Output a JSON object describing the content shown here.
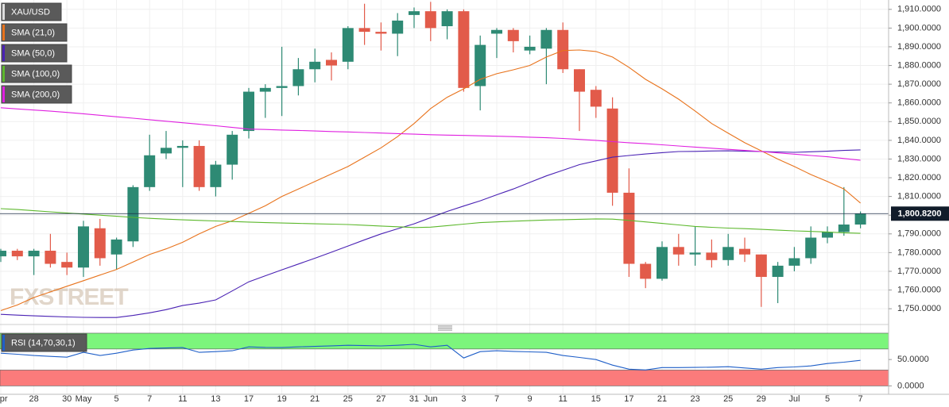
{
  "chart_data": [
    {
      "type": "candlestick",
      "watermark": "FXSTREET",
      "categories": [
        "Apr",
        null,
        "28",
        null,
        "30",
        "May",
        null,
        "5",
        null,
        "7",
        null,
        "11",
        null,
        "13",
        null,
        "17",
        null,
        "19",
        null,
        "21",
        null,
        "25",
        null,
        "27",
        null,
        "31",
        "Jun",
        null,
        "3",
        null,
        "7",
        null,
        "9",
        null,
        "11",
        null,
        "15",
        null,
        "17",
        null,
        "21",
        null,
        "23",
        null,
        "25",
        null,
        "29",
        null,
        "Jul",
        null,
        "5",
        null,
        "7"
      ],
      "candles": {
        "name": "XAU/USD",
        "up_color": "#2e8a74",
        "down_color": "#e25b4a",
        "open": [
          1778,
          1781,
          1778,
          1781,
          1775,
          1772,
          1793,
          1779,
          1786,
          1815,
          1833,
          1836,
          1837,
          1815,
          1827,
          1845,
          1866,
          1868,
          1869,
          1878,
          1883,
          1882,
          1900,
          1898,
          1897,
          1907,
          1909,
          1901,
          1909,
          1869,
          1897,
          1899,
          1888,
          1889,
          1899,
          1878,
          1867,
          1857,
          1812,
          1774,
          1766,
          1783,
          1779,
          1780,
          1776,
          1782,
          1779,
          1767,
          1773,
          1777,
          1788,
          1791,
          1795
        ],
        "high": [
          1782,
          1782,
          1782,
          1790,
          1780,
          1797,
          1798,
          1788,
          1816,
          1843,
          1845,
          1840,
          1840,
          1829,
          1845,
          1868,
          1870,
          1890,
          1884,
          1889,
          1887,
          1901,
          1913,
          1903,
          1908,
          1911,
          1914,
          1910,
          1910,
          1896,
          1900,
          1900,
          1896,
          1900,
          1903,
          1878,
          1869,
          1863,
          1825,
          1775,
          1786,
          1790,
          1794,
          1787,
          1790,
          1788,
          1779,
          1775,
          1783,
          1794,
          1794,
          1815,
          1802
        ],
        "low": [
          1775,
          1776,
          1768,
          1772,
          1768,
          1767,
          1773,
          1771,
          1783,
          1813,
          1830,
          1815,
          1813,
          1810,
          1819,
          1841,
          1852,
          1853,
          1864,
          1871,
          1872,
          1878,
          1891,
          1888,
          1885,
          1900,
          1893,
          1894,
          1866,
          1856,
          1884,
          1887,
          1886,
          1870,
          1876,
          1845,
          1852,
          1805,
          1767,
          1761,
          1765,
          1773,
          1773,
          1772,
          1773,
          1775,
          1751,
          1753,
          1770,
          1774,
          1785,
          1789,
          1793
        ],
        "close": [
          1781,
          1778,
          1781,
          1774,
          1772,
          1794,
          1777,
          1787,
          1815,
          1832,
          1836,
          1837,
          1815,
          1827,
          1843,
          1866,
          1868,
          1869,
          1878,
          1882,
          1880,
          1900,
          1898,
          1897,
          1904,
          1909,
          1900,
          1909,
          1868,
          1891,
          1899,
          1893,
          1890,
          1899,
          1878,
          1866,
          1858,
          1812,
          1774,
          1766,
          1783,
          1779,
          1780,
          1776,
          1783,
          1779,
          1767,
          1773,
          1777,
          1788,
          1791,
          1795,
          1800.82
        ]
      },
      "series": [
        {
          "name": "SMA (21,0)",
          "color": "#e8731c",
          "values": [
            1749,
            1752,
            1756,
            1759,
            1762,
            1765,
            1768,
            1771,
            1775,
            1779,
            1782,
            1785.5,
            1790,
            1794,
            1797,
            1801,
            1805,
            1810,
            1814,
            1818,
            1822,
            1826,
            1831,
            1836,
            1842,
            1849,
            1857,
            1863,
            1867.5,
            1872.6,
            1875.6,
            1877.7,
            1880,
            1884.5,
            1888,
            1888.3,
            1887.5,
            1884.5,
            1879,
            1872.6,
            1867.5,
            1862,
            1855.7,
            1849,
            1843.8,
            1838.7,
            1834.4,
            1830,
            1826,
            1821.7,
            1818,
            1814,
            1806.5
          ]
        },
        {
          "name": "SMA (50,0)",
          "color": "#4a22b4",
          "values": [
            1747,
            1746.6,
            1746.2,
            1745.9,
            1745.6,
            1745.4,
            1745.3,
            1745.3,
            1746.4,
            1747.8,
            1749.5,
            1751.7,
            1753,
            1754.7,
            1759.5,
            1764.4,
            1767.6,
            1770.8,
            1773.9,
            1777,
            1780.2,
            1783.5,
            1786.8,
            1790,
            1792.7,
            1795.4,
            1798.7,
            1802,
            1804.9,
            1807.7,
            1810.9,
            1814,
            1817.5,
            1821,
            1824,
            1827,
            1829,
            1831,
            1831.9,
            1832.7,
            1833.4,
            1834,
            1834.1,
            1834.3,
            1834.4,
            1834.2,
            1834,
            1833.8,
            1833.6,
            1833.9,
            1834.2,
            1834.6,
            1834.9
          ]
        },
        {
          "name": "SMA (100,0)",
          "color": "#5cb82c",
          "values": [
            1803.5,
            1803,
            1802.4,
            1801.8,
            1801.2,
            1800.6,
            1800,
            1799.4,
            1798.8,
            1798.3,
            1797.9,
            1797.5,
            1797.2,
            1796.9,
            1796.6,
            1796.3,
            1796,
            1795.8,
            1795.6,
            1795.4,
            1795.2,
            1795,
            1794.6,
            1794.2,
            1793.8,
            1793.4,
            1793.6,
            1794.4,
            1795.2,
            1796,
            1796.4,
            1796.8,
            1797.1,
            1797.4,
            1797.6,
            1797.8,
            1798,
            1797.9,
            1797.2,
            1796.4,
            1795.6,
            1794.8,
            1794,
            1793.5,
            1793.1,
            1792.8,
            1792.4,
            1792,
            1791.6,
            1791.3,
            1791,
            1790.6,
            1790.3
          ]
        },
        {
          "name": "SMA (200,0)",
          "color": "#e020e0",
          "values": [
            1857.4,
            1856.8,
            1856.2,
            1855.6,
            1854.9,
            1854.2,
            1853.4,
            1852.6,
            1851.8,
            1851,
            1850.2,
            1849.4,
            1848.6,
            1847.8,
            1846.9,
            1846,
            1845.8,
            1845.5,
            1845.3,
            1845,
            1844.7,
            1844.5,
            1844.2,
            1843.9,
            1843.6,
            1843.3,
            1843,
            1842.8,
            1842.6,
            1842.4,
            1842.2,
            1842,
            1841.7,
            1841.4,
            1841,
            1840.5,
            1840,
            1839.3,
            1838.7,
            1838.2,
            1837.6,
            1837,
            1836.4,
            1835.8,
            1835.2,
            1834.6,
            1834,
            1833.3,
            1832.6,
            1831.9,
            1831.2,
            1830.3,
            1829.4
          ]
        }
      ],
      "last_price": {
        "value": 1800.82,
        "label": "1,800.8200"
      },
      "ylim": [
        1742,
        1915
      ],
      "yticks": [
        {
          "value": 1750,
          "label": "1,750.0000"
        },
        {
          "value": 1760,
          "label": "1,760.0000"
        },
        {
          "value": 1770,
          "label": "1,770.0000"
        },
        {
          "value": 1780,
          "label": "1,780.0000"
        },
        {
          "value": 1790,
          "label": "1,790.0000"
        },
        {
          "value": 1800,
          "label": "1,800.0000"
        },
        {
          "value": 1810,
          "label": "1,810.0000"
        },
        {
          "value": 1820,
          "label": "1,820.0000"
        },
        {
          "value": 1830,
          "label": "1,830.0000"
        },
        {
          "value": 1840,
          "label": "1,840.0000"
        },
        {
          "value": 1850,
          "label": "1,850.0000"
        },
        {
          "value": 1860,
          "label": "1,860.0000"
        },
        {
          "value": 1870,
          "label": "1,870.0000"
        },
        {
          "value": 1880,
          "label": "1,880.0000"
        },
        {
          "value": 1890,
          "label": "1,890.0000"
        },
        {
          "value": 1900,
          "label": "1,900.0000"
        },
        {
          "value": 1910,
          "label": "1,910.0000"
        }
      ],
      "grid": true
    },
    {
      "type": "line",
      "series": [
        {
          "name": "RSI (14,70,30,1)",
          "color": "#1f5fc8",
          "values": [
            62,
            60,
            57.6,
            56,
            54.5,
            63.6,
            57.6,
            62,
            68,
            71,
            72,
            72.7,
            63.6,
            65,
            66.7,
            74,
            73,
            72.7,
            74,
            75,
            76,
            77,
            76.5,
            75.8,
            77,
            78.8,
            74,
            77,
            53,
            65,
            66.7,
            65.5,
            64.5,
            63.6,
            57.6,
            54,
            50,
            39.4,
            31.8,
            30.3,
            34.8,
            34.8,
            35,
            35.5,
            36.4,
            34,
            31.8,
            34.8,
            36,
            37.9,
            42.4,
            45,
            48.5
          ]
        }
      ],
      "overbought": [
        70,
        100
      ],
      "overbought_color": "#7cf57c",
      "oversold": [
        0,
        30
      ],
      "oversold_color": "#fb7b7b",
      "ylim": [
        -16,
        115
      ],
      "yticks": [
        {
          "value": 0,
          "label": "0.0000"
        },
        {
          "value": 50,
          "label": "50.0000"
        }
      ]
    }
  ]
}
